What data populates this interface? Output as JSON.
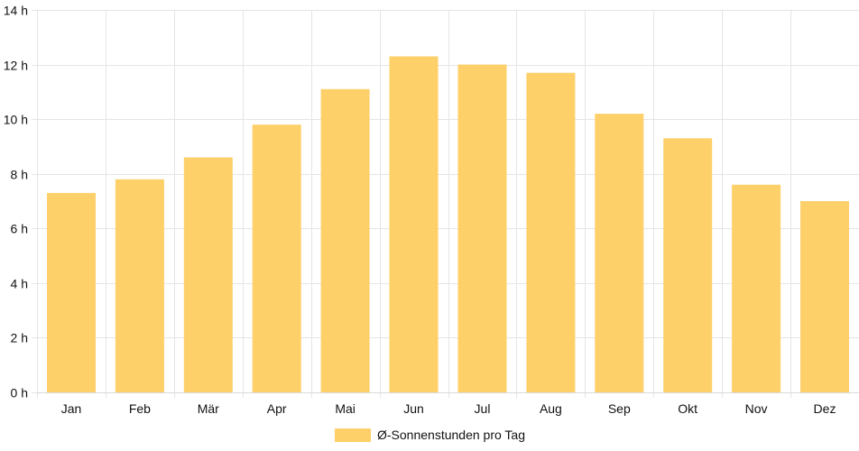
{
  "chart_data": {
    "type": "bar",
    "categories": [
      "Jan",
      "Feb",
      "Mär",
      "Apr",
      "Mai",
      "Jun",
      "Jul",
      "Aug",
      "Sep",
      "Okt",
      "Nov",
      "Dez"
    ],
    "series": [
      {
        "name": "Ø-Sonnenstunden pro Tag",
        "values": [
          7.3,
          7.8,
          8.6,
          9.8,
          11.1,
          12.3,
          12.0,
          11.7,
          10.2,
          9.3,
          7.6,
          7.0
        ],
        "color": "#fdd06a"
      }
    ],
    "y_tick_labels": [
      "0 h",
      "2 h",
      "4 h",
      "6 h",
      "8 h",
      "10 h",
      "12 h",
      "14 h"
    ],
    "ylim": [
      0,
      14
    ],
    "ytick_step": 2,
    "grid": true,
    "legend_position": "bottom"
  }
}
